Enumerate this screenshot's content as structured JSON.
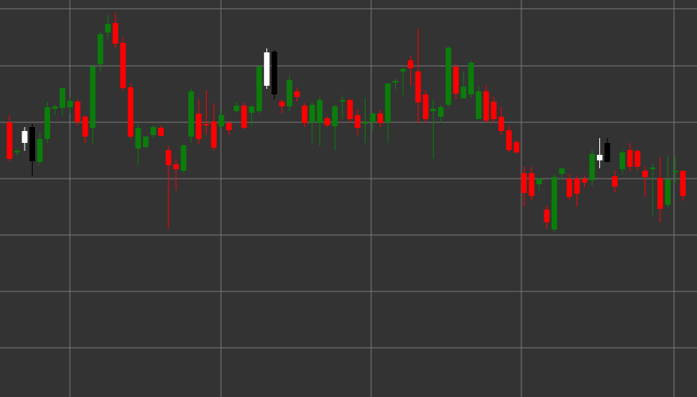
{
  "colors": {
    "background": "#333333",
    "grid": "#777777",
    "up": "#0b7d0b",
    "down": "#ff0000",
    "highlight_up": "#ffffff",
    "highlight_down": "#000000"
  },
  "chart_data": {
    "type": "candlestick",
    "title": "",
    "xlabel": "",
    "ylabel": "",
    "grid": true,
    "tick_labels_shown": false,
    "ylim": [
      0,
      500
    ],
    "candles": [
      {
        "o": 346,
        "h": 355,
        "l": 296,
        "c": 300,
        "col": "down"
      },
      {
        "o": 308,
        "h": 313,
        "l": 304,
        "c": 310,
        "col": "up"
      },
      {
        "o": 320,
        "h": 340,
        "l": 310,
        "c": 335,
        "col": "highlight_up"
      },
      {
        "o": 340,
        "h": 344,
        "l": 278,
        "c": 297,
        "col": "highlight_down"
      },
      {
        "o": 296,
        "h": 333,
        "l": 292,
        "c": 325,
        "col": "up"
      },
      {
        "o": 325,
        "h": 372,
        "l": 320,
        "c": 365,
        "col": "up"
      },
      {
        "o": 363,
        "h": 368,
        "l": 355,
        "c": 366,
        "col": "up"
      },
      {
        "o": 364,
        "h": 389,
        "l": 355,
        "c": 389,
        "col": "up"
      },
      {
        "o": 373,
        "h": 378,
        "l": 357,
        "c": 365,
        "col": "up"
      },
      {
        "o": 372,
        "h": 375,
        "l": 342,
        "c": 346,
        "col": "down"
      },
      {
        "o": 353,
        "h": 355,
        "l": 320,
        "c": 328,
        "col": "down"
      },
      {
        "o": 339,
        "h": 420,
        "l": 318,
        "c": 416,
        "col": "up"
      },
      {
        "o": 419,
        "h": 460,
        "l": 410,
        "c": 457,
        "col": "up"
      },
      {
        "o": 459,
        "h": 481,
        "l": 450,
        "c": 470,
        "col": "up"
      },
      {
        "o": 471,
        "h": 484,
        "l": 440,
        "c": 445,
        "col": "down"
      },
      {
        "o": 446,
        "h": 453,
        "l": 386,
        "c": 389,
        "col": "down"
      },
      {
        "o": 390,
        "h": 395,
        "l": 325,
        "c": 328,
        "col": "down"
      },
      {
        "o": 313,
        "h": 344,
        "l": 292,
        "c": 339,
        "col": "up"
      },
      {
        "o": 315,
        "h": 329,
        "l": 313,
        "c": 328,
        "col": "up"
      },
      {
        "o": 330,
        "h": 342,
        "l": 326,
        "c": 340,
        "col": "up"
      },
      {
        "o": 339,
        "h": 342,
        "l": 328,
        "c": 329,
        "col": "down"
      },
      {
        "o": 311,
        "h": 317,
        "l": 212,
        "c": 292,
        "col": "down"
      },
      {
        "o": 293,
        "h": 300,
        "l": 260,
        "c": 287,
        "col": "down"
      },
      {
        "o": 285,
        "h": 318,
        "l": 282,
        "c": 317,
        "col": "up"
      },
      {
        "o": 328,
        "h": 388,
        "l": 320,
        "c": 385,
        "col": "up"
      },
      {
        "o": 357,
        "h": 375,
        "l": 318,
        "c": 325,
        "col": "down"
      },
      {
        "o": 344,
        "h": 386,
        "l": 330,
        "c": 344,
        "col": "down"
      },
      {
        "o": 347,
        "h": 370,
        "l": 310,
        "c": 314,
        "col": "down"
      },
      {
        "o": 355,
        "h": 362,
        "l": 338,
        "c": 341,
        "col": "up"
      },
      {
        "o": 345,
        "h": 348,
        "l": 330,
        "c": 336,
        "col": "down"
      },
      {
        "o": 367,
        "h": 372,
        "l": 358,
        "c": 360,
        "col": "up"
      },
      {
        "o": 367,
        "h": 371,
        "l": 336,
        "c": 339,
        "col": "down"
      },
      {
        "o": 358,
        "h": 368,
        "l": 342,
        "c": 366,
        "col": "up"
      },
      {
        "o": 360,
        "h": 420,
        "l": 357,
        "c": 416,
        "col": "up"
      },
      {
        "o": 392,
        "h": 439,
        "l": 388,
        "c": 434,
        "col": "highlight_up"
      },
      {
        "o": 435,
        "h": 437,
        "l": 375,
        "c": 381,
        "col": "highlight_down"
      },
      {
        "o": 372,
        "h": 375,
        "l": 357,
        "c": 366,
        "col": "down"
      },
      {
        "o": 366,
        "h": 405,
        "l": 360,
        "c": 399,
        "col": "up"
      },
      {
        "o": 385,
        "h": 390,
        "l": 372,
        "c": 378,
        "col": "down"
      },
      {
        "o": 367,
        "h": 370,
        "l": 340,
        "c": 345,
        "col": "down"
      },
      {
        "o": 346,
        "h": 372,
        "l": 320,
        "c": 368,
        "col": "up"
      },
      {
        "o": 345,
        "h": 378,
        "l": 316,
        "c": 374,
        "col": "up"
      },
      {
        "o": 351,
        "h": 354,
        "l": 340,
        "c": 342,
        "col": "down"
      },
      {
        "o": 341,
        "h": 368,
        "l": 311,
        "c": 366,
        "col": "up"
      },
      {
        "o": 372,
        "h": 380,
        "l": 350,
        "c": 374,
        "col": "up"
      },
      {
        "o": 374,
        "h": 376,
        "l": 345,
        "c": 350,
        "col": "down"
      },
      {
        "o": 355,
        "h": 362,
        "l": 330,
        "c": 339,
        "col": "down"
      },
      {
        "o": 345,
        "h": 377,
        "l": 320,
        "c": 346,
        "col": "up"
      },
      {
        "o": 346,
        "h": 358,
        "l": 335,
        "c": 357,
        "col": "up"
      },
      {
        "o": 357,
        "h": 362,
        "l": 340,
        "c": 345,
        "col": "down"
      },
      {
        "o": 346,
        "h": 393,
        "l": 320,
        "c": 395,
        "col": "up"
      },
      {
        "o": 396,
        "h": 401,
        "l": 388,
        "c": 398,
        "col": "up"
      },
      {
        "o": 410,
        "h": 415,
        "l": 380,
        "c": 413,
        "col": "up"
      },
      {
        "o": 424,
        "h": 430,
        "l": 392,
        "c": 414,
        "col": "down"
      },
      {
        "o": 410,
        "h": 464,
        "l": 345,
        "c": 371,
        "col": "down"
      },
      {
        "o": 381,
        "h": 386,
        "l": 345,
        "c": 350,
        "col": "down"
      },
      {
        "o": 360,
        "h": 375,
        "l": 300,
        "c": 363,
        "col": "up"
      },
      {
        "o": 353,
        "h": 368,
        "l": 345,
        "c": 365,
        "col": "up"
      },
      {
        "o": 368,
        "h": 442,
        "l": 365,
        "c": 440,
        "col": "up"
      },
      {
        "o": 416,
        "h": 420,
        "l": 375,
        "c": 382,
        "col": "down"
      },
      {
        "o": 391,
        "h": 410,
        "l": 376,
        "c": 376,
        "col": "up"
      },
      {
        "o": 381,
        "h": 424,
        "l": 377,
        "c": 421,
        "col": "up"
      },
      {
        "o": 385,
        "h": 392,
        "l": 352,
        "c": 350,
        "col": "up"
      },
      {
        "o": 385,
        "h": 393,
        "l": 345,
        "c": 348,
        "col": "down"
      },
      {
        "o": 372,
        "h": 378,
        "l": 345,
        "c": 350,
        "col": "down"
      },
      {
        "o": 353,
        "h": 366,
        "l": 330,
        "c": 335,
        "col": "down"
      },
      {
        "o": 336,
        "h": 342,
        "l": 308,
        "c": 311,
        "col": "down"
      },
      {
        "o": 321,
        "h": 324,
        "l": 306,
        "c": 308,
        "col": "down"
      },
      {
        "o": 282,
        "h": 290,
        "l": 240,
        "c": 257,
        "col": "down"
      },
      {
        "o": 282,
        "h": 290,
        "l": 248,
        "c": 253,
        "col": "down"
      },
      {
        "o": 268,
        "h": 276,
        "l": 260,
        "c": 275,
        "col": "up"
      },
      {
        "o": 236,
        "h": 241,
        "l": 212,
        "c": 220,
        "col": "down"
      },
      {
        "o": 211,
        "h": 280,
        "l": 208,
        "c": 277,
        "col": "up"
      },
      {
        "o": 281,
        "h": 286,
        "l": 276,
        "c": 288,
        "col": "up"
      },
      {
        "o": 275,
        "h": 281,
        "l": 248,
        "c": 252,
        "col": "down"
      },
      {
        "o": 275,
        "h": 279,
        "l": 240,
        "c": 256,
        "col": "down"
      },
      {
        "o": 275,
        "h": 279,
        "l": 264,
        "c": 270,
        "col": "down"
      },
      {
        "o": 273,
        "h": 312,
        "l": 266,
        "c": 306,
        "col": "up"
      },
      {
        "o": 298,
        "h": 326,
        "l": 288,
        "c": 305,
        "col": "highlight_up"
      },
      {
        "o": 320,
        "h": 326,
        "l": 296,
        "c": 296,
        "col": "highlight_down"
      },
      {
        "o": 278,
        "h": 285,
        "l": 258,
        "c": 265,
        "col": "down"
      },
      {
        "o": 287,
        "h": 312,
        "l": 280,
        "c": 308,
        "col": "up"
      },
      {
        "o": 311,
        "h": 320,
        "l": 284,
        "c": 290,
        "col": "down"
      },
      {
        "o": 310,
        "h": 312,
        "l": 285,
        "c": 290,
        "col": "down"
      },
      {
        "o": 285,
        "h": 290,
        "l": 252,
        "c": 277,
        "col": "down"
      },
      {
        "o": 287,
        "h": 294,
        "l": 228,
        "c": 289,
        "col": "up"
      },
      {
        "o": 276,
        "h": 302,
        "l": 220,
        "c": 237,
        "col": "down"
      },
      {
        "o": 274,
        "h": 304,
        "l": 238,
        "c": 242,
        "col": "up"
      },
      {
        "o": 285,
        "h": 303,
        "l": 270,
        "c": 285,
        "col": "up"
      },
      {
        "o": 285,
        "h": 285,
        "l": 247,
        "c": 253,
        "col": "down"
      }
    ]
  }
}
